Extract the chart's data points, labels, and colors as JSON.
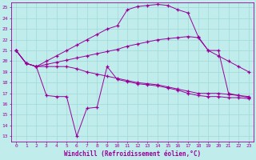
{
  "xlabel": "Windchill (Refroidissement éolien,°C)",
  "bg_color": "#c0ecec",
  "grid_color": "#a0d8d8",
  "line_color": "#990099",
  "xlim": [
    -0.5,
    23.5
  ],
  "ylim": [
    12.5,
    25.5
  ],
  "yticks": [
    13,
    14,
    15,
    16,
    17,
    18,
    19,
    20,
    21,
    22,
    23,
    24,
    25
  ],
  "xticks": [
    0,
    1,
    2,
    3,
    4,
    5,
    6,
    7,
    8,
    9,
    10,
    11,
    12,
    13,
    14,
    15,
    16,
    17,
    18,
    19,
    20,
    21,
    22,
    23
  ],
  "line1_x": [
    0,
    1,
    2,
    3,
    4,
    5,
    6,
    7,
    8,
    9,
    10,
    11,
    12,
    13,
    14,
    15,
    16,
    17,
    18,
    19,
    20,
    21,
    22,
    23
  ],
  "line1_y": [
    21.0,
    19.8,
    19.5,
    19.5,
    19.5,
    19.5,
    19.3,
    19.0,
    18.8,
    18.6,
    18.4,
    18.2,
    18.0,
    17.9,
    17.8,
    17.6,
    17.4,
    17.2,
    17.0,
    17.0,
    17.0,
    16.9,
    16.8,
    16.6
  ],
  "line2_x": [
    0,
    1,
    2,
    3,
    4,
    5,
    6,
    7,
    8,
    9,
    10,
    11,
    12,
    13,
    14,
    15,
    16,
    17,
    18,
    19,
    20,
    21,
    22,
    23
  ],
  "line2_y": [
    21.0,
    19.8,
    19.5,
    19.7,
    19.9,
    20.1,
    20.3,
    20.5,
    20.7,
    20.9,
    21.1,
    21.4,
    21.6,
    21.8,
    22.0,
    22.1,
    22.2,
    22.3,
    22.2,
    21.0,
    20.5,
    20.0,
    19.5,
    19.0
  ],
  "line3_x": [
    0,
    1,
    2,
    3,
    4,
    5,
    6,
    7,
    8,
    9,
    10,
    11,
    12,
    13,
    14,
    15,
    16,
    17,
    18,
    19,
    20,
    21,
    22,
    23
  ],
  "line3_y": [
    21.0,
    19.8,
    19.5,
    20.0,
    20.5,
    21.0,
    21.5,
    22.0,
    22.5,
    23.0,
    23.3,
    24.8,
    25.1,
    25.2,
    25.3,
    25.2,
    24.8,
    24.5,
    22.3,
    21.0,
    21.0,
    17.0,
    16.8,
    16.7
  ],
  "line4_x": [
    0,
    1,
    2,
    3,
    4,
    5,
    6,
    7,
    8,
    9,
    10,
    11,
    12,
    13,
    14,
    15,
    16,
    17,
    18,
    19,
    20,
    21,
    22,
    23
  ],
  "line4_y": [
    21.0,
    19.8,
    19.5,
    16.8,
    16.7,
    16.7,
    13.0,
    15.6,
    15.7,
    19.5,
    18.3,
    18.1,
    17.9,
    17.8,
    17.7,
    17.5,
    17.3,
    17.0,
    16.8,
    16.7,
    16.7,
    16.6,
    16.6,
    16.5
  ]
}
